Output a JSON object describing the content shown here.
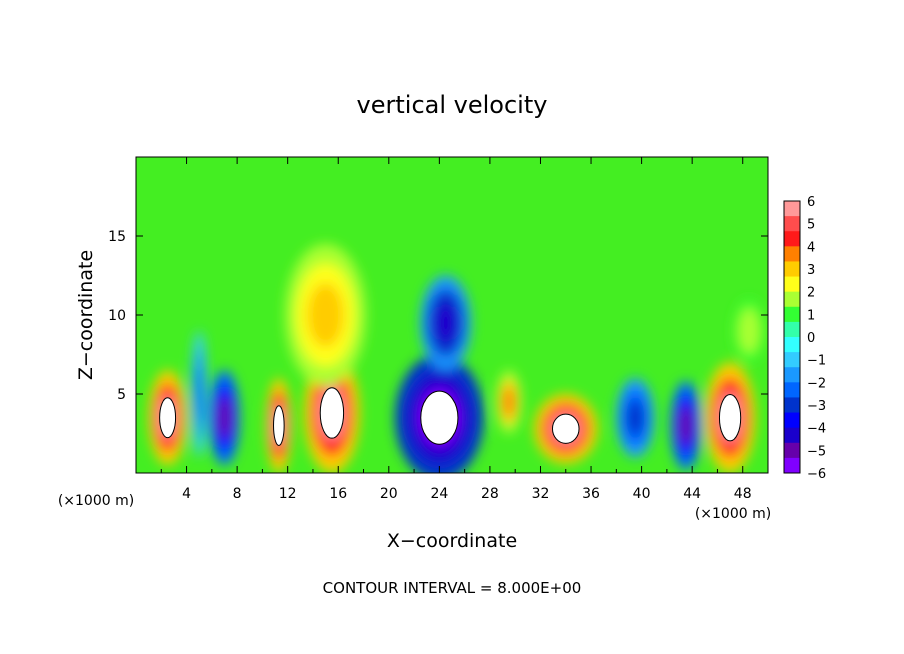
{
  "chart_data": {
    "type": "heatmap",
    "title": "vertical velocity",
    "xlabel": "X−coordinate",
    "ylabel": "Z−coordinate",
    "x_unit_left": "(×1000 m)",
    "x_unit_right": "(×1000 m)",
    "footer": "CONTOUR INTERVAL = 8.000E+00",
    "xlim": [
      0,
      50
    ],
    "ylim": [
      0,
      20
    ],
    "x_ticks": [
      4,
      8,
      12,
      16,
      20,
      24,
      28,
      32,
      36,
      40,
      44,
      48
    ],
    "y_ticks": [
      5,
      10,
      15
    ],
    "colorbar": {
      "range": [
        -6,
        6
      ],
      "labels": [
        "6",
        "5",
        "4",
        "3",
        "2",
        "1",
        "0",
        "−1",
        "−2",
        "−3",
        "−4",
        "−5",
        "−6"
      ],
      "colors": [
        "#ff9999",
        "#ff4d4d",
        "#ff1a1a",
        "#ff8000",
        "#ffcc00",
        "#ffff1a",
        "#aaff33",
        "#33ff33",
        "#33ffaa",
        "#33ffff",
        "#33ccff",
        "#1a99ff",
        "#0066ff",
        "#0033cc",
        "#0000ff",
        "#1a00cc",
        "#6600aa",
        "#8000ff"
      ]
    },
    "cells": [
      {
        "x": 2.5,
        "y": 3.5,
        "rx": 1.5,
        "ry": 3.0,
        "value": 6
      },
      {
        "x": 5.0,
        "y": 5.0,
        "rx": 0.6,
        "ry": 4.0,
        "value": -2
      },
      {
        "x": 7.0,
        "y": 3.5,
        "rx": 1.2,
        "ry": 3.0,
        "value": -5
      },
      {
        "x": 11.3,
        "y": 3.0,
        "rx": 1.0,
        "ry": 3.0,
        "value": 6
      },
      {
        "x": 15.5,
        "y": 3.8,
        "rx": 2.2,
        "ry": 3.8,
        "value": 6
      },
      {
        "x": 15.0,
        "y": 10.0,
        "rx": 3.2,
        "ry": 4.5,
        "value": 3
      },
      {
        "x": 24.0,
        "y": 3.5,
        "rx": 3.5,
        "ry": 4.0,
        "value": -6
      },
      {
        "x": 24.5,
        "y": 9.5,
        "rx": 2.0,
        "ry": 3.0,
        "value": -4
      },
      {
        "x": 29.5,
        "y": 4.5,
        "rx": 1.0,
        "ry": 2.0,
        "value": 4
      },
      {
        "x": 34.0,
        "y": 2.8,
        "rx": 2.5,
        "ry": 2.2,
        "value": 6
      },
      {
        "x": 39.5,
        "y": 3.5,
        "rx": 1.5,
        "ry": 2.5,
        "value": -3
      },
      {
        "x": 43.5,
        "y": 3.0,
        "rx": 1.2,
        "ry": 2.8,
        "value": -5
      },
      {
        "x": 47.0,
        "y": 3.5,
        "rx": 2.0,
        "ry": 3.5,
        "value": 6
      },
      {
        "x": 48.5,
        "y": 9.0,
        "rx": 1.2,
        "ry": 2.0,
        "value": 2
      }
    ]
  }
}
